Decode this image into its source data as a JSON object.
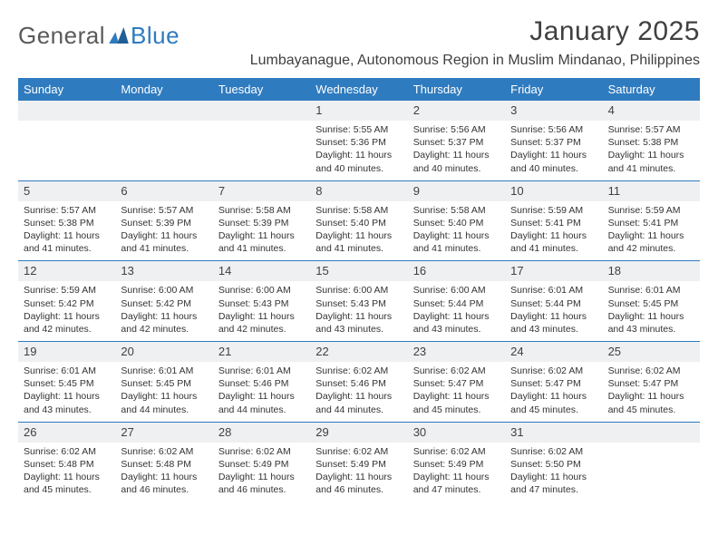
{
  "brand": {
    "general": "General",
    "blue": "Blue"
  },
  "header": {
    "month_title": "January 2025",
    "subtitle": "Lumbayanague, Autonomous Region in Muslim Mindanao, Philippines"
  },
  "colors": {
    "header_bar": "#2f7bbf",
    "week_divider": "#2f7bbf",
    "daynum_bg": "#eef0f2",
    "text": "#333333",
    "title_text": "#404040"
  },
  "calendar": {
    "weekdays": [
      "Sunday",
      "Monday",
      "Tuesday",
      "Wednesday",
      "Thursday",
      "Friday",
      "Saturday"
    ],
    "first_weekday_index": 3,
    "days": [
      {
        "n": 1,
        "sunrise": "5:55 AM",
        "sunset": "5:36 PM",
        "dl_h": 11,
        "dl_m": 40
      },
      {
        "n": 2,
        "sunrise": "5:56 AM",
        "sunset": "5:37 PM",
        "dl_h": 11,
        "dl_m": 40
      },
      {
        "n": 3,
        "sunrise": "5:56 AM",
        "sunset": "5:37 PM",
        "dl_h": 11,
        "dl_m": 40
      },
      {
        "n": 4,
        "sunrise": "5:57 AM",
        "sunset": "5:38 PM",
        "dl_h": 11,
        "dl_m": 41
      },
      {
        "n": 5,
        "sunrise": "5:57 AM",
        "sunset": "5:38 PM",
        "dl_h": 11,
        "dl_m": 41
      },
      {
        "n": 6,
        "sunrise": "5:57 AM",
        "sunset": "5:39 PM",
        "dl_h": 11,
        "dl_m": 41
      },
      {
        "n": 7,
        "sunrise": "5:58 AM",
        "sunset": "5:39 PM",
        "dl_h": 11,
        "dl_m": 41
      },
      {
        "n": 8,
        "sunrise": "5:58 AM",
        "sunset": "5:40 PM",
        "dl_h": 11,
        "dl_m": 41
      },
      {
        "n": 9,
        "sunrise": "5:58 AM",
        "sunset": "5:40 PM",
        "dl_h": 11,
        "dl_m": 41
      },
      {
        "n": 10,
        "sunrise": "5:59 AM",
        "sunset": "5:41 PM",
        "dl_h": 11,
        "dl_m": 41
      },
      {
        "n": 11,
        "sunrise": "5:59 AM",
        "sunset": "5:41 PM",
        "dl_h": 11,
        "dl_m": 42
      },
      {
        "n": 12,
        "sunrise": "5:59 AM",
        "sunset": "5:42 PM",
        "dl_h": 11,
        "dl_m": 42
      },
      {
        "n": 13,
        "sunrise": "6:00 AM",
        "sunset": "5:42 PM",
        "dl_h": 11,
        "dl_m": 42
      },
      {
        "n": 14,
        "sunrise": "6:00 AM",
        "sunset": "5:43 PM",
        "dl_h": 11,
        "dl_m": 42
      },
      {
        "n": 15,
        "sunrise": "6:00 AM",
        "sunset": "5:43 PM",
        "dl_h": 11,
        "dl_m": 43
      },
      {
        "n": 16,
        "sunrise": "6:00 AM",
        "sunset": "5:44 PM",
        "dl_h": 11,
        "dl_m": 43
      },
      {
        "n": 17,
        "sunrise": "6:01 AM",
        "sunset": "5:44 PM",
        "dl_h": 11,
        "dl_m": 43
      },
      {
        "n": 18,
        "sunrise": "6:01 AM",
        "sunset": "5:45 PM",
        "dl_h": 11,
        "dl_m": 43
      },
      {
        "n": 19,
        "sunrise": "6:01 AM",
        "sunset": "5:45 PM",
        "dl_h": 11,
        "dl_m": 43
      },
      {
        "n": 20,
        "sunrise": "6:01 AM",
        "sunset": "5:45 PM",
        "dl_h": 11,
        "dl_m": 44
      },
      {
        "n": 21,
        "sunrise": "6:01 AM",
        "sunset": "5:46 PM",
        "dl_h": 11,
        "dl_m": 44
      },
      {
        "n": 22,
        "sunrise": "6:02 AM",
        "sunset": "5:46 PM",
        "dl_h": 11,
        "dl_m": 44
      },
      {
        "n": 23,
        "sunrise": "6:02 AM",
        "sunset": "5:47 PM",
        "dl_h": 11,
        "dl_m": 45
      },
      {
        "n": 24,
        "sunrise": "6:02 AM",
        "sunset": "5:47 PM",
        "dl_h": 11,
        "dl_m": 45
      },
      {
        "n": 25,
        "sunrise": "6:02 AM",
        "sunset": "5:47 PM",
        "dl_h": 11,
        "dl_m": 45
      },
      {
        "n": 26,
        "sunrise": "6:02 AM",
        "sunset": "5:48 PM",
        "dl_h": 11,
        "dl_m": 45
      },
      {
        "n": 27,
        "sunrise": "6:02 AM",
        "sunset": "5:48 PM",
        "dl_h": 11,
        "dl_m": 46
      },
      {
        "n": 28,
        "sunrise": "6:02 AM",
        "sunset": "5:49 PM",
        "dl_h": 11,
        "dl_m": 46
      },
      {
        "n": 29,
        "sunrise": "6:02 AM",
        "sunset": "5:49 PM",
        "dl_h": 11,
        "dl_m": 46
      },
      {
        "n": 30,
        "sunrise": "6:02 AM",
        "sunset": "5:49 PM",
        "dl_h": 11,
        "dl_m": 47
      },
      {
        "n": 31,
        "sunrise": "6:02 AM",
        "sunset": "5:50 PM",
        "dl_h": 11,
        "dl_m": 47
      }
    ],
    "labels": {
      "sunrise_prefix": "Sunrise: ",
      "sunset_prefix": "Sunset: ",
      "daylight_prefix": "Daylight: ",
      "hours_word": " hours",
      "and_word": "and ",
      "minutes_word": " minutes."
    }
  }
}
